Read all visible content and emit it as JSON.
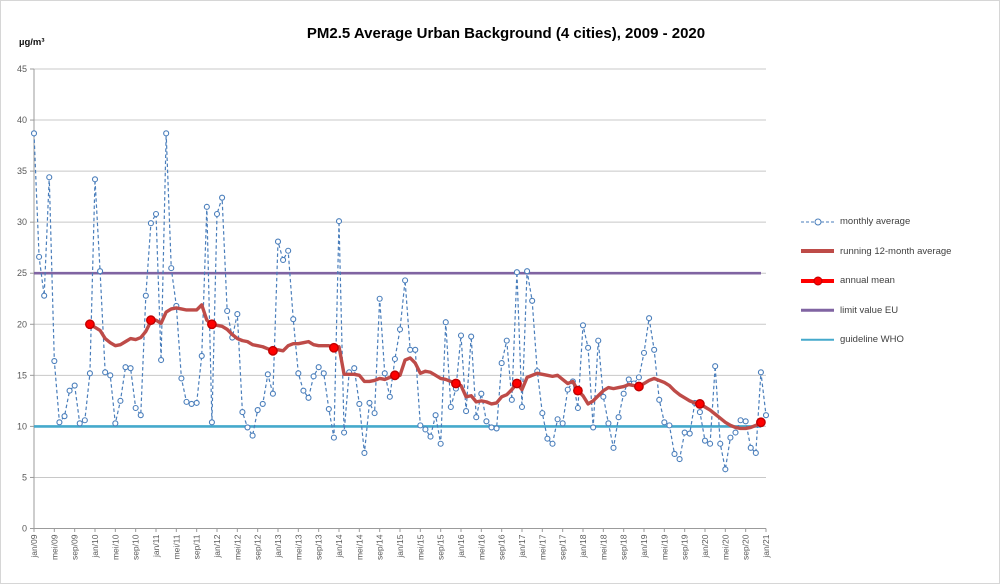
{
  "title": "PM2.5 Average Urban Background (4 cities), 2009 - 2020",
  "y_axis_unit": "µg/m³",
  "chart_data": {
    "type": "line",
    "title": "PM2.5 Average Urban Background (4 cities), 2009 - 2020",
    "ylabel": "µg/m³",
    "xlabel": "",
    "ylim": [
      0,
      45
    ],
    "y_ticks": [
      0,
      5,
      10,
      15,
      20,
      25,
      30,
      35,
      40,
      45
    ],
    "grid": "horizontal",
    "legend_position": "right",
    "months_span": 144,
    "x_tick_step_months": 4,
    "x_tick_labels": [
      "jan/09",
      "mei/09",
      "sep/09",
      "jan/10",
      "mei/10",
      "sep/10",
      "jan/11",
      "mei/11",
      "sep/11",
      "jan/12",
      "mei/12",
      "sep/12",
      "jan/13",
      "mei/13",
      "sep/13",
      "jan/14",
      "mei/14",
      "sep/14",
      "jan/15",
      "mei/15",
      "sep/15",
      "jan/16",
      "mei/16",
      "sep/16",
      "jan/17",
      "mei/17",
      "sep/17",
      "jan/18",
      "mei/18",
      "sep/18",
      "jan/19",
      "mei/19",
      "sep/19",
      "jan/20",
      "mei/20",
      "sep/20",
      "jan/21"
    ],
    "series": [
      {
        "name": "monthly average",
        "style": "dashed-line-open-circle-markers",
        "color": "#4a7ebb",
        "start_month_index": 0,
        "values": [
          38.7,
          26.6,
          22.8,
          34.4,
          16.4,
          10.4,
          11.0,
          13.5,
          14.0,
          10.3,
          10.6,
          15.2,
          34.2,
          25.2,
          15.3,
          15.0,
          10.3,
          12.5,
          15.8,
          15.7,
          11.8,
          11.1,
          22.8,
          29.9,
          30.8,
          16.5,
          38.7,
          25.5,
          21.8,
          14.7,
          12.4,
          12.2,
          12.3,
          16.9,
          31.5,
          10.4,
          30.8,
          32.4,
          21.3,
          18.7,
          21.0,
          11.4,
          9.9,
          9.1,
          11.6,
          12.2,
          15.1,
          13.2,
          28.1,
          26.3,
          27.2,
          20.5,
          15.2,
          13.5,
          12.8,
          14.9,
          15.8,
          15.2,
          11.7,
          8.9,
          30.1,
          9.4,
          15.3,
          15.7,
          12.2,
          7.4,
          12.3,
          11.3,
          22.5,
          15.2,
          12.9,
          16.6,
          19.5,
          24.3,
          17.5,
          17.5,
          10.1,
          9.7,
          9.0,
          11.1,
          8.3,
          20.2,
          11.9,
          13.7,
          18.9,
          11.5,
          18.8,
          10.9,
          13.2,
          10.5,
          9.9,
          9.8,
          16.2,
          18.4,
          12.6,
          25.1,
          11.9,
          25.2,
          22.3,
          15.4,
          11.3,
          8.8,
          8.3,
          10.7,
          10.3,
          13.6,
          14.4,
          11.8,
          19.9,
          17.7,
          9.9,
          18.4,
          12.9,
          10.3,
          7.9,
          10.9,
          13.2,
          14.6,
          14.2,
          14.8,
          17.2,
          20.6,
          17.5,
          12.6,
          10.4,
          10.1,
          7.3,
          6.8,
          9.4,
          9.3,
          12.3,
          11.4,
          8.6,
          8.3,
          15.9,
          8.3,
          5.8,
          8.9,
          9.4,
          10.6,
          10.5,
          7.9,
          7.4,
          15.3,
          11.1
        ]
      },
      {
        "name": "running 12-month average",
        "style": "thick-line",
        "color": "#be4b48",
        "start_month_index": 11,
        "values": [
          20.0,
          19.7,
          19.4,
          18.6,
          18.2,
          17.9,
          18.0,
          18.3,
          18.6,
          18.5,
          18.7,
          19.3,
          20.3,
          20.4,
          20.1,
          21.2,
          21.5,
          21.6,
          21.5,
          21.4,
          21.4,
          21.4,
          21.9,
          20.4,
          20.0,
          19.9,
          19.8,
          19.5,
          19.0,
          18.6,
          18.4,
          18.3,
          18.0,
          17.9,
          17.8,
          17.6,
          17.4,
          17.5,
          17.4,
          17.9,
          18.1,
          18.1,
          18.2,
          18.3,
          18.0,
          17.9,
          17.9,
          17.9,
          17.7,
          17.8,
          15.1,
          15.1,
          15.1,
          15.0,
          14.4,
          14.4,
          14.5,
          14.7,
          14.6,
          14.8,
          15.0,
          15.0,
          16.5,
          16.7,
          16.2,
          15.2,
          15.4,
          15.3,
          15.0,
          14.7,
          14.6,
          14.4,
          14.2,
          14.0,
          12.9,
          13.0,
          12.4,
          12.5,
          12.4,
          12.2,
          12.3,
          12.9,
          13.1,
          13.6,
          14.2,
          13.6,
          14.8,
          15.0,
          15.2,
          15.1,
          15.0,
          14.9,
          15.0,
          14.6,
          14.2,
          14.4,
          13.5,
          13.0,
          12.2,
          12.5,
          13.0,
          13.5,
          13.8,
          13.7,
          13.8,
          13.9,
          14.1,
          14.0,
          13.9,
          14.2,
          14.5,
          14.7,
          14.5,
          14.3,
          14.0,
          13.5,
          13.1,
          12.8,
          12.5,
          12.3,
          12.2,
          11.9,
          11.6,
          11.2,
          10.8,
          10.4,
          10.1,
          9.9,
          9.8,
          9.8,
          9.9,
          10.1,
          10.3
        ]
      },
      {
        "name": "annual mean",
        "style": "red-dots",
        "color": "#ff0000",
        "ring_color": "#c00000",
        "years": [
          2009,
          2010,
          2011,
          2012,
          2013,
          2014,
          2015,
          2016,
          2017,
          2018,
          2019,
          2020
        ],
        "month_indices": [
          11,
          23,
          35,
          47,
          59,
          71,
          83,
          95,
          107,
          119,
          131,
          143
        ],
        "values": [
          20.0,
          20.4,
          20.0,
          17.4,
          17.7,
          15.0,
          14.2,
          14.2,
          13.5,
          13.9,
          12.2,
          10.4
        ]
      },
      {
        "name": "limit value EU",
        "style": "hline",
        "color": "#8064a2",
        "value": 25
      },
      {
        "name": "guideline WHO",
        "style": "hline",
        "color": "#45a9cc",
        "value": 10
      }
    ]
  }
}
